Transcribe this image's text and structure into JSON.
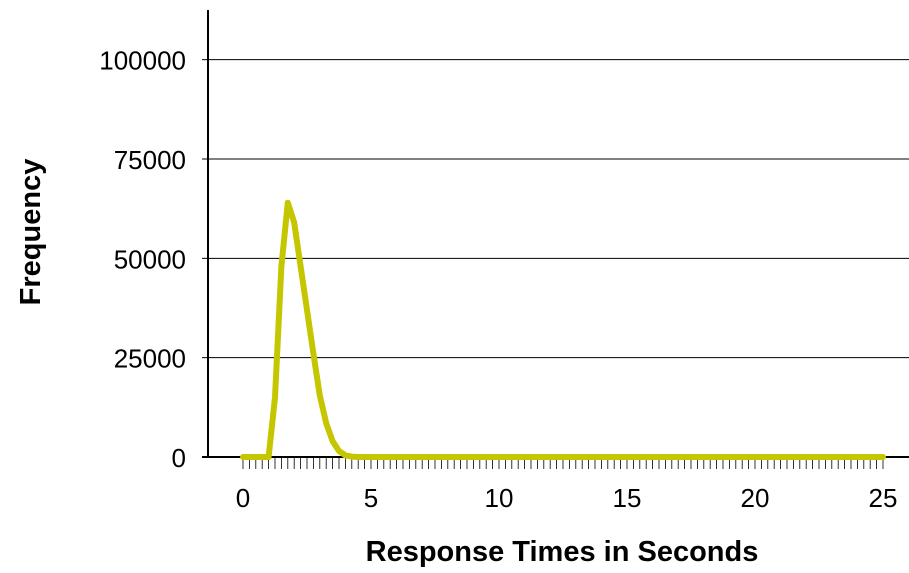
{
  "chart_data": {
    "type": "line",
    "title": "",
    "xlabel": "Response Times in Seconds",
    "ylabel": "Frequency",
    "xlim": [
      0,
      25
    ],
    "ylim": [
      0,
      112500
    ],
    "x_ticks": [
      0,
      5,
      10,
      15,
      20,
      25
    ],
    "y_ticks": [
      0,
      25000,
      50000,
      75000,
      100000
    ],
    "x_minor_step": 0.25,
    "grid": "horizontal",
    "legend": "none",
    "series": [
      {
        "color": "#c6c600",
        "x": [
          0,
          0.25,
          0.5,
          0.75,
          1.0,
          1.25,
          1.5,
          1.75,
          2.0,
          2.25,
          2.5,
          2.75,
          3.0,
          3.25,
          3.5,
          3.75,
          4.0,
          4.25,
          4.5,
          4.75,
          5.0,
          6,
          7,
          8,
          9,
          10,
          11,
          12,
          13,
          14,
          15,
          16,
          17,
          18,
          19,
          20,
          21,
          22,
          23,
          24,
          25
        ],
        "values": [
          0,
          0,
          0,
          0,
          0,
          15000,
          48000,
          64000,
          59000,
          48000,
          37000,
          26000,
          15500,
          8500,
          4000,
          1500,
          400,
          100,
          0,
          0,
          0,
          0,
          0,
          0,
          0,
          0,
          0,
          0,
          0,
          0,
          0,
          0,
          0,
          0,
          0,
          0,
          0,
          0,
          0,
          0,
          0
        ]
      }
    ]
  }
}
